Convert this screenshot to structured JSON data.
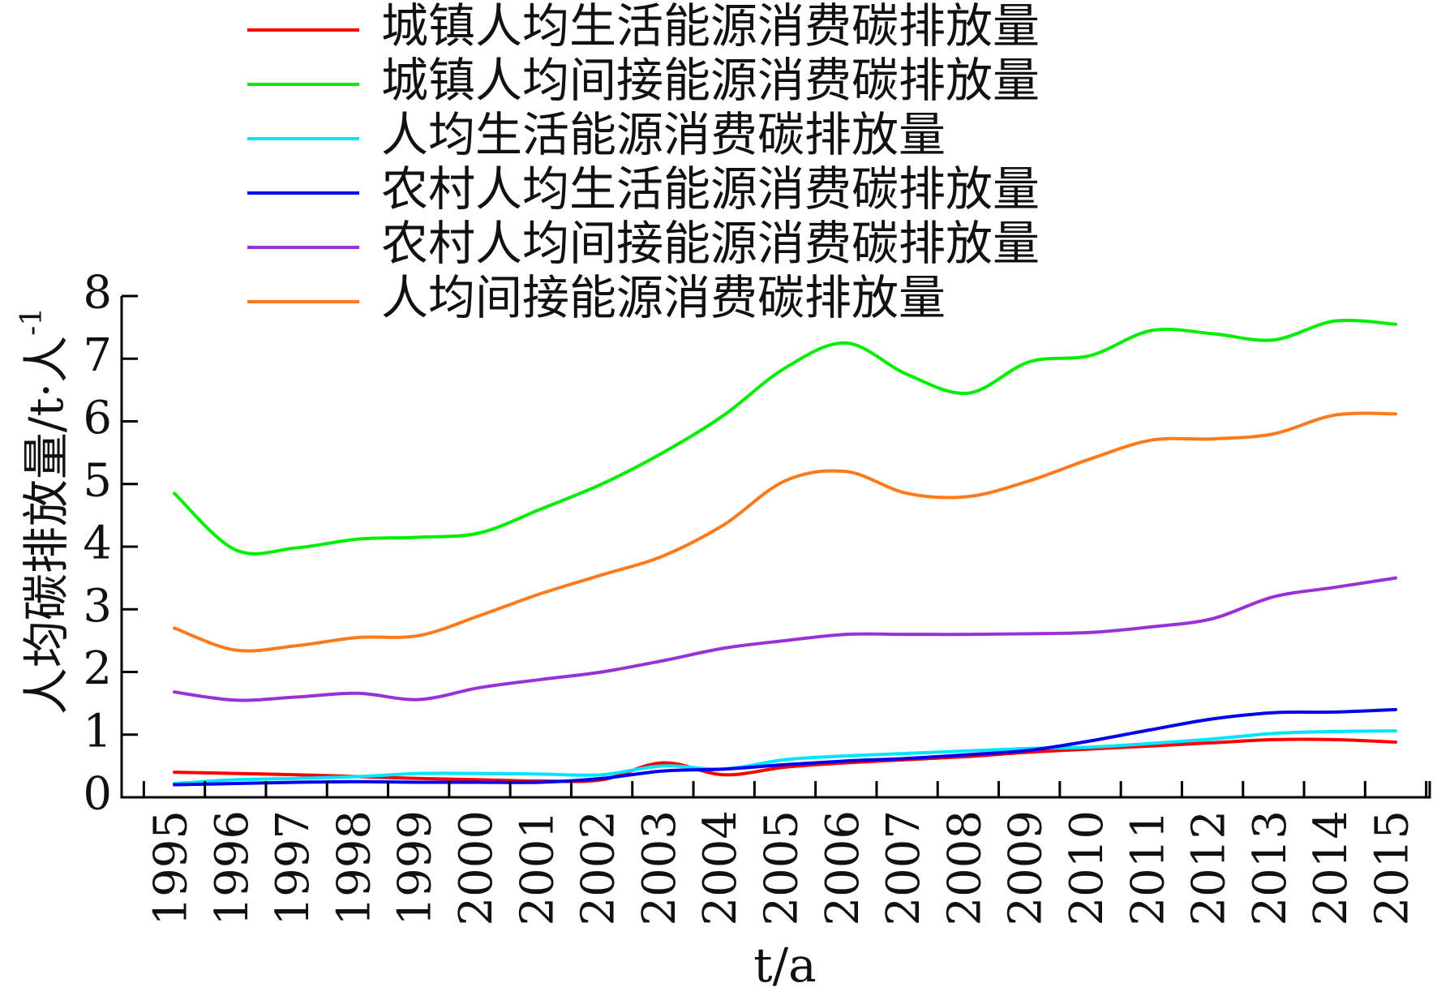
{
  "chart_data": {
    "type": "line",
    "xlabel": "t/a",
    "ylabel": "人均碳排放量/t·人",
    "ylabel_superscript": "-1",
    "ylim": [
      0,
      8
    ],
    "yticks": [
      0,
      1,
      2,
      3,
      4,
      5,
      6,
      7,
      8
    ],
    "x": [
      "1995",
      "1996",
      "1997",
      "1998",
      "1999",
      "2000",
      "2001",
      "2002",
      "2003",
      "2004",
      "2005",
      "2006",
      "2007",
      "2008",
      "2009",
      "2010",
      "2011",
      "2012",
      "2013",
      "2014",
      "2015"
    ],
    "grid": false,
    "legend_position": "top",
    "series": [
      {
        "name": "城镇人均生活能源消费碳排放量",
        "color": "#ff0000",
        "values": [
          0.4,
          0.38,
          0.36,
          0.33,
          0.3,
          0.28,
          0.26,
          0.28,
          0.55,
          0.36,
          0.48,
          0.55,
          0.6,
          0.65,
          0.72,
          0.77,
          0.82,
          0.87,
          0.92,
          0.92,
          0.88
        ]
      },
      {
        "name": "城镇人均间接能源消费碳排放量",
        "color": "#00ee00",
        "values": [
          4.85,
          3.95,
          3.98,
          4.12,
          4.15,
          4.22,
          4.6,
          5.0,
          5.5,
          6.1,
          6.85,
          7.25,
          6.75,
          6.45,
          6.95,
          7.05,
          7.45,
          7.4,
          7.3,
          7.6,
          7.55
        ]
      },
      {
        "name": "人均生活能源消费碳排放量",
        "color": "#00e5ff",
        "values": [
          0.22,
          0.28,
          0.3,
          0.33,
          0.38,
          0.38,
          0.37,
          0.36,
          0.5,
          0.45,
          0.6,
          0.66,
          0.7,
          0.74,
          0.78,
          0.8,
          0.86,
          0.93,
          1.02,
          1.05,
          1.06
        ]
      },
      {
        "name": "农村人均生活能源消费碳排放量",
        "color": "#0000ee",
        "values": [
          0.2,
          0.22,
          0.24,
          0.25,
          0.24,
          0.24,
          0.24,
          0.3,
          0.42,
          0.45,
          0.52,
          0.58,
          0.62,
          0.68,
          0.75,
          0.9,
          1.08,
          1.25,
          1.35,
          1.36,
          1.4
        ]
      },
      {
        "name": "农村人均间接能源消费碳排放量",
        "color": "#9a30d8",
        "values": [
          1.68,
          1.55,
          1.6,
          1.66,
          1.56,
          1.75,
          1.88,
          2.0,
          2.18,
          2.38,
          2.5,
          2.6,
          2.6,
          2.6,
          2.61,
          2.63,
          2.72,
          2.85,
          3.2,
          3.35,
          3.5
        ]
      },
      {
        "name": "人均间接能源消费碳排放量",
        "color": "#ff7a1a",
        "values": [
          2.7,
          2.35,
          2.42,
          2.55,
          2.58,
          2.9,
          3.25,
          3.55,
          3.85,
          4.35,
          5.05,
          5.2,
          4.85,
          4.8,
          5.05,
          5.4,
          5.7,
          5.72,
          5.8,
          6.1,
          6.12
        ]
      }
    ]
  }
}
